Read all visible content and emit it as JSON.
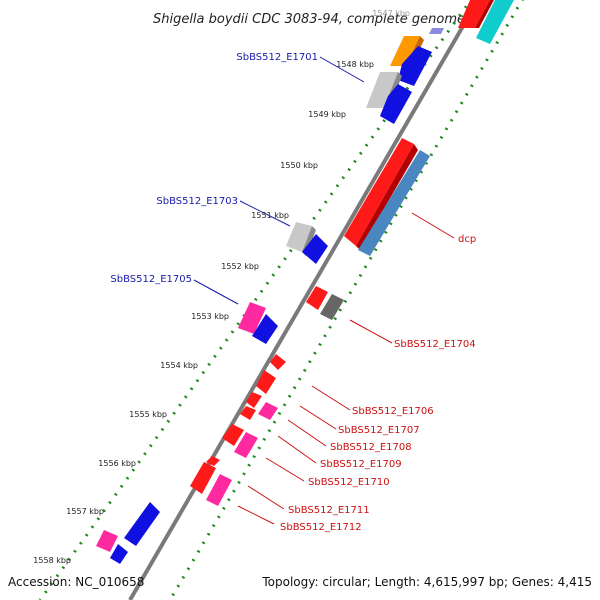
{
  "title": "Shigella boydii CDC 3083-94, complete genome",
  "accession": "Accession: NC_010658",
  "topology": "Topology: circular; Length: 4,615,997 bp; Genes: 4,415",
  "top_tick": "1547 kbp",
  "ticks": [
    "1548 kbp",
    "1549 kbp",
    "1550 kbp",
    "1551 kbp",
    "1552 kbp",
    "1553 kbp",
    "1554 kbp",
    "1555 kbp",
    "1556 kbp",
    "1557 kbp",
    "1558 kbp"
  ],
  "labels_forward": [
    "SbBS512_E1701",
    "SbBS512_E1703",
    "SbBS512_E1705"
  ],
  "labels_reverse": [
    "dcp",
    "SbBS512_E1704",
    "SbBS512_E1706",
    "SbBS512_E1707",
    "SbBS512_E1708",
    "SbBS512_E1709",
    "SbBS512_E1710",
    "SbBS512_E1711",
    "SbBS512_E1712"
  ],
  "colors": {
    "backbone": "#7a7a7a",
    "tick_dots": "#1f8a1f",
    "blue_label": "#1a1aaa",
    "red_label": "#cc1111",
    "gene_red": "#ff1a1a",
    "gene_blue": "#1010e0",
    "gene_steel": "#4a86c0",
    "gene_orange": "#ff9900",
    "gene_silver": "#c0c0c0",
    "gene_magenta": "#ff2aa0",
    "gene_darkgray": "#666666",
    "gene_cyan": "#11cccc"
  }
}
